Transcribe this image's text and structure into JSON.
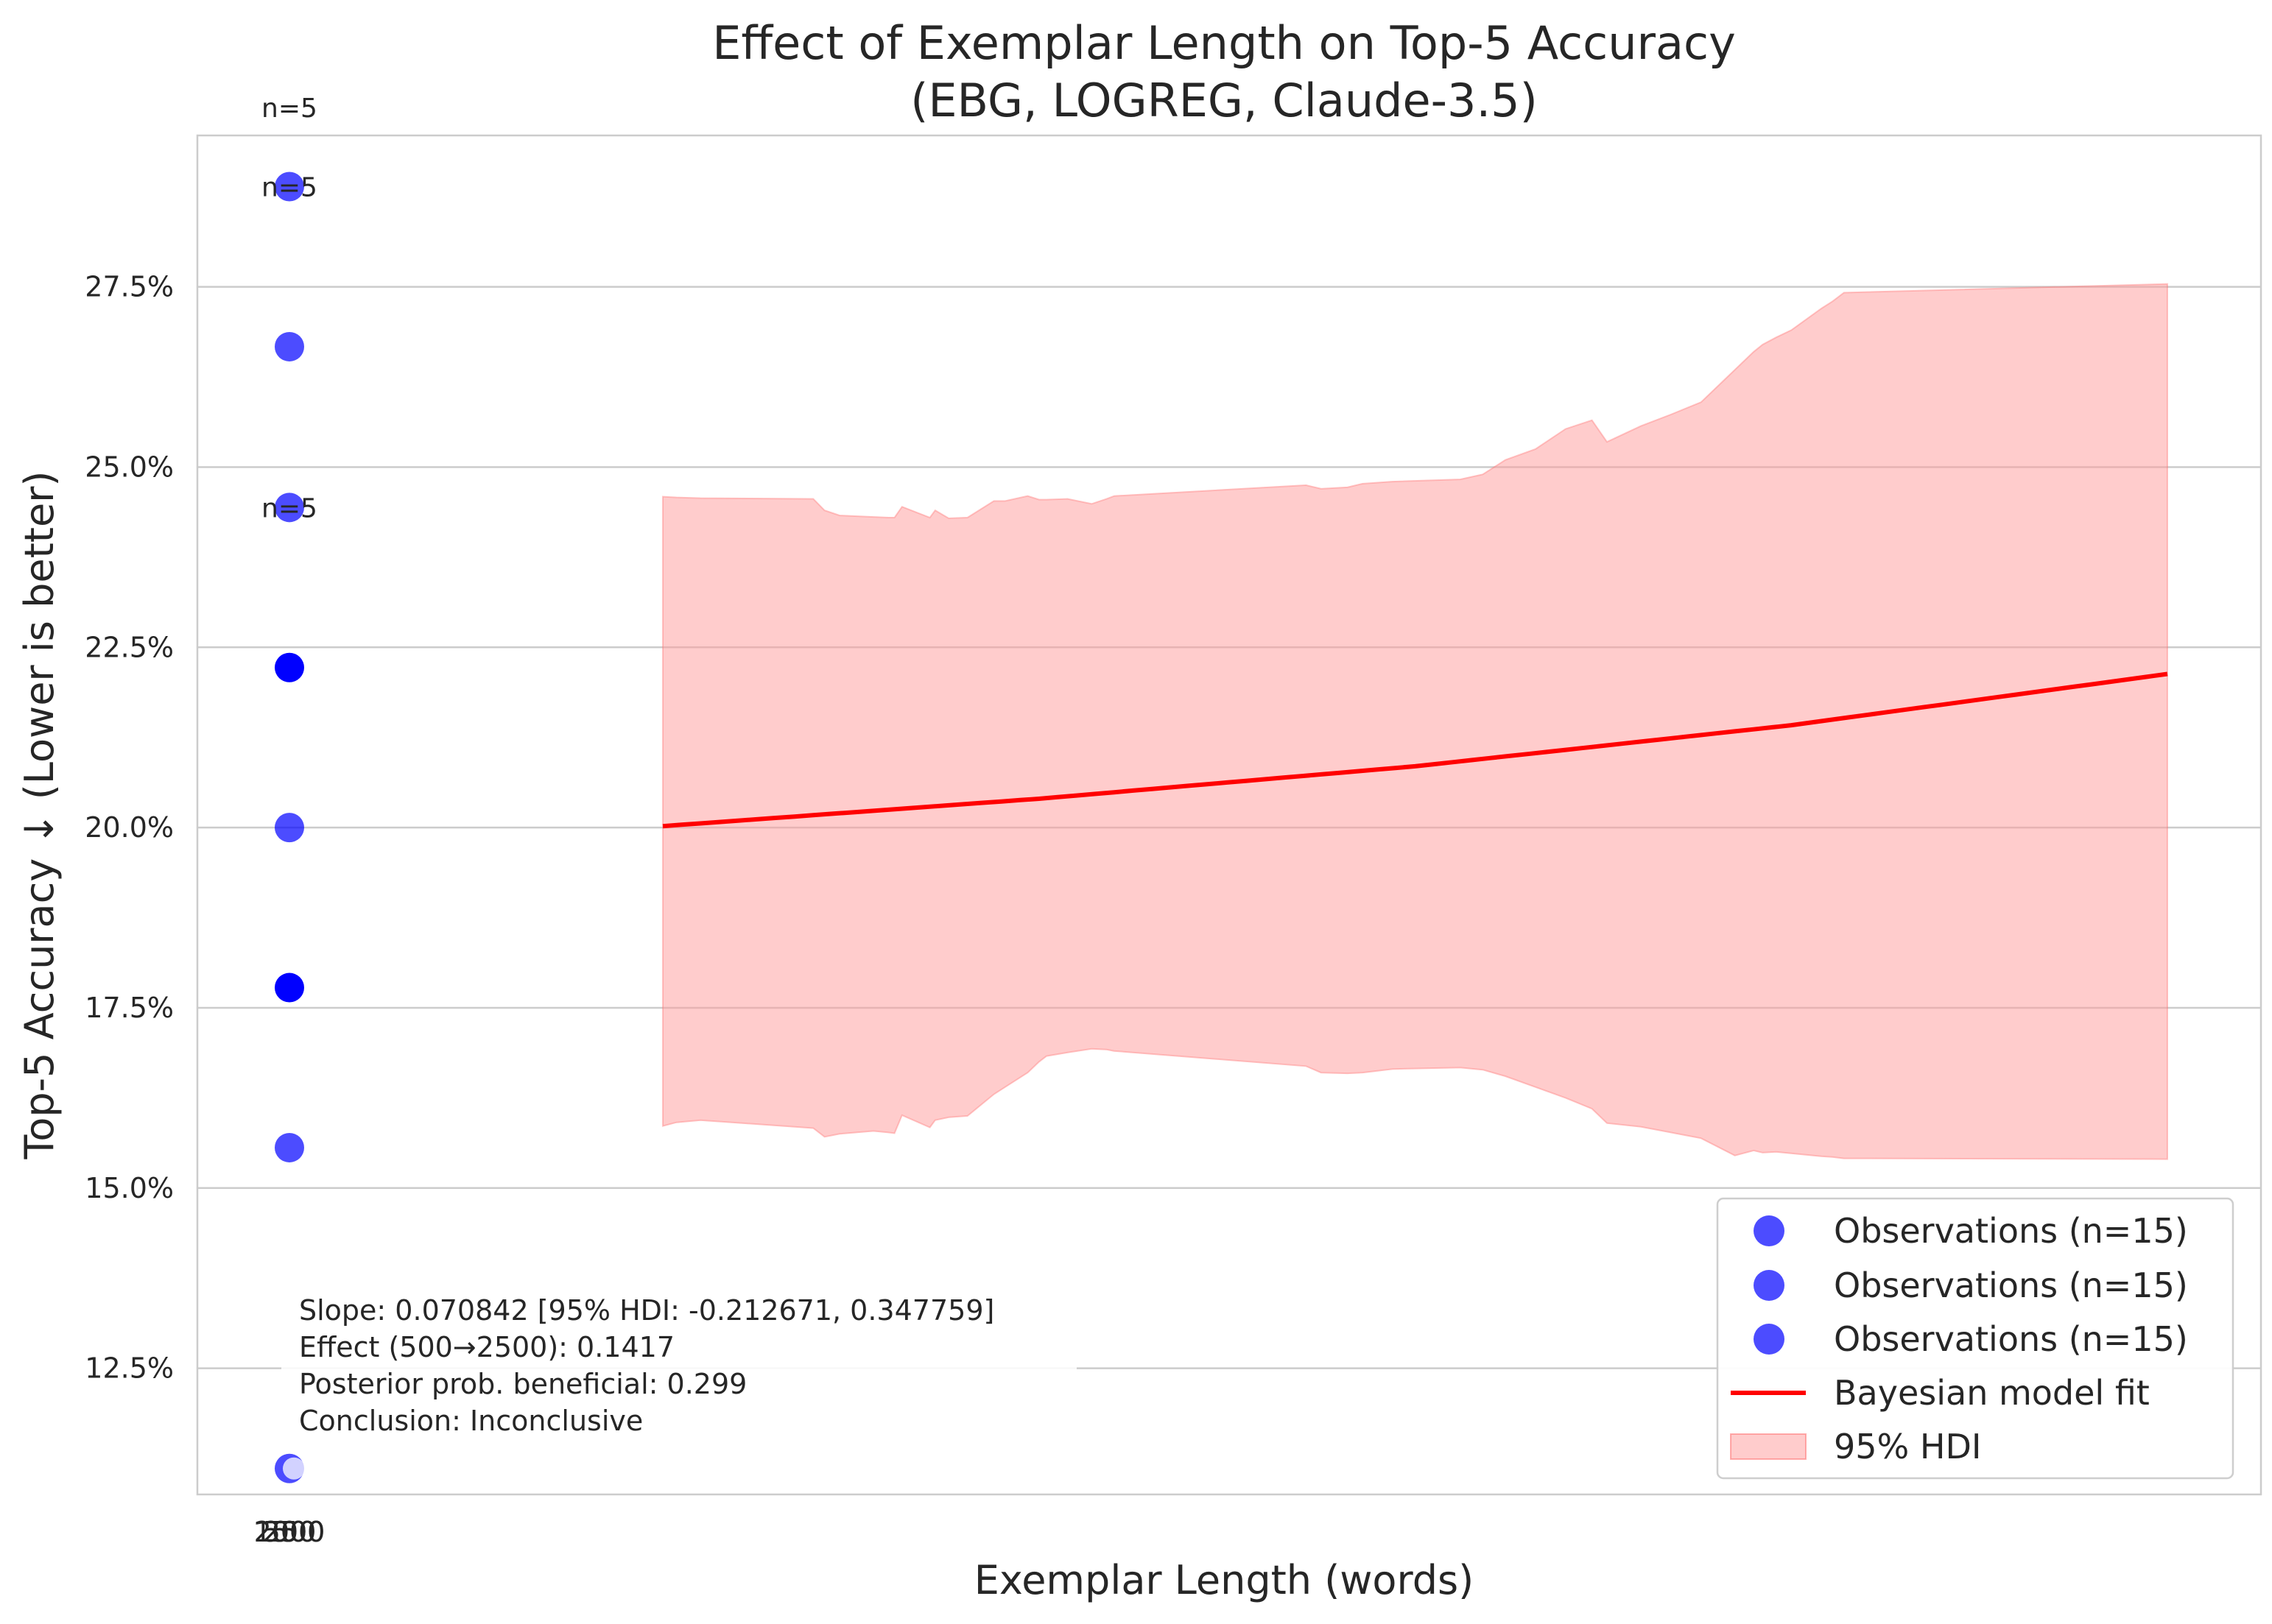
{
  "chart_data": {
    "type": "scatter",
    "title": "Effect of Exemplar Length on Top-5 Accuracy",
    "subtitle": "(EBG, LOGREG, Claude-3.5)",
    "xlabel": "Exemplar Length (words)",
    "ylabel": "Top-5 Accuracy ↓ (Lower is better)",
    "ylim": [
      0.1075,
      0.296
    ],
    "y_ticks": [
      0.125,
      0.15,
      0.175,
      0.2,
      0.225,
      0.25,
      0.275
    ],
    "y_tick_labels": [
      "12.5%",
      "15.0%",
      "17.5%",
      "20.0%",
      "22.5%",
      "25.0%",
      "27.5%"
    ],
    "x_tick_labels_overlapping": [
      "250",
      "500",
      "1000",
      "2500"
    ],
    "grid": "horizontal",
    "legend_position": "lower right",
    "observations": [
      {
        "x": 0,
        "y": 0.2889,
        "color": "#0000ff",
        "alpha": 0.7
      },
      {
        "x": 0,
        "y": 0.2667,
        "color": "#0000ff",
        "alpha": 0.7
      },
      {
        "x": 0,
        "y": 0.2444,
        "color": "#0000ff",
        "alpha": 0.7
      },
      {
        "x": 0,
        "y": 0.2222,
        "color": "#0000ff",
        "alpha": 1.0
      },
      {
        "x": 0,
        "y": 0.2,
        "color": "#0000ff",
        "alpha": 0.7
      },
      {
        "x": 0,
        "y": 0.1778,
        "color": "#0000ff",
        "alpha": 1.0
      },
      {
        "x": 0,
        "y": 0.1556,
        "color": "#0000ff",
        "alpha": 0.7
      },
      {
        "x": 0,
        "y": 0.1111,
        "color": "#0000ff",
        "alpha": 0.7
      }
    ],
    "n_labels": [
      {
        "text": "n=5",
        "y": 0.2999
      },
      {
        "text": "n=5",
        "y": 0.2889
      },
      {
        "text": "n=5",
        "y": 0.2444
      }
    ],
    "fit_line": {
      "name": "Bayesian model fit",
      "color": "#ff0000",
      "x": [
        500,
        1000,
        1500,
        2000,
        2500
      ],
      "y": [
        0.2002,
        0.204,
        0.2085,
        0.2142,
        0.2213
      ]
    },
    "hdi_band": {
      "name": "95% HDI",
      "color": "#ff9999",
      "x": [
        500,
        518,
        550,
        700,
        715,
        735,
        780,
        800,
        808,
        818,
        855,
        862,
        880,
        905,
        940,
        955,
        985,
        1000,
        1010,
        1038,
        1070,
        1090,
        1100,
        1100,
        1355,
        1375,
        1410,
        1430,
        1470,
        1560,
        1590,
        1620,
        1660,
        1700,
        1735,
        1755,
        1800,
        1840,
        1880,
        1925,
        1950,
        1962,
        1980,
        2000,
        2040,
        2055,
        2070,
        2500
      ],
      "upper": [
        0.2459,
        0.2458,
        0.2457,
        0.2456,
        0.244,
        0.2433,
        0.2431,
        0.243,
        0.243,
        0.2445,
        0.243,
        0.244,
        0.2429,
        0.243,
        0.2453,
        0.2453,
        0.246,
        0.2455,
        0.2455,
        0.2456,
        0.2449,
        0.2456,
        0.246,
        0.246,
        0.2475,
        0.247,
        0.2472,
        0.2477,
        0.248,
        0.2483,
        0.249,
        0.251,
        0.2525,
        0.2553,
        0.2565,
        0.2535,
        0.2557,
        0.2573,
        0.259,
        0.2635,
        0.266,
        0.267,
        0.268,
        0.269,
        0.272,
        0.273,
        0.2742,
        0.2754
      ],
      "lower": [
        0.1586,
        0.1591,
        0.1594,
        0.1583,
        0.1571,
        0.1575,
        0.1579,
        0.1577,
        0.1576,
        0.1601,
        0.1584,
        0.1594,
        0.1598,
        0.16,
        0.163,
        0.164,
        0.166,
        0.1675,
        0.1683,
        0.1688,
        0.1693,
        0.1692,
        0.169,
        0.169,
        0.1669,
        0.166,
        0.1659,
        0.166,
        0.1665,
        0.1667,
        0.1664,
        0.1655,
        0.164,
        0.1625,
        0.161,
        0.159,
        0.1585,
        0.1577,
        0.1569,
        0.1545,
        0.1552,
        0.1549,
        0.155,
        0.1548,
        0.1544,
        0.1543,
        0.1541,
        0.154
      ]
    },
    "annotation": [
      "Slope: 0.070842 [95% HDI: -0.212671, 0.347759]",
      "Effect (500→2500): 0.1417",
      "Posterior prob. beneficial: 0.299",
      "Conclusion: Inconclusive"
    ],
    "legend": [
      {
        "label": "Observations (n=15)",
        "kind": "marker",
        "color": "#0000ff"
      },
      {
        "label": "Observations (n=15)",
        "kind": "marker",
        "color": "#0000ff"
      },
      {
        "label": "Observations (n=15)",
        "kind": "marker",
        "color": "#0000ff"
      },
      {
        "label": "Bayesian model fit",
        "kind": "line",
        "color": "#ff0000"
      },
      {
        "label": "95% HDI",
        "kind": "patch",
        "color": "#ff9999"
      }
    ]
  }
}
